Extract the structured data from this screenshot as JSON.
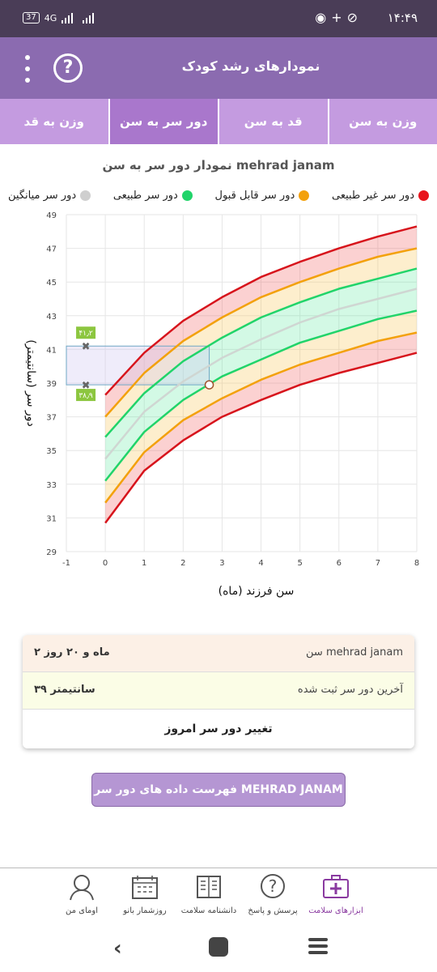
{
  "status_bar": {
    "time": "۱۴:۴۹",
    "battery": "37",
    "network": "4G",
    "icons": [
      "whatsapp-icon",
      "plus-icon",
      "mute-icon"
    ]
  },
  "app_bar": {
    "title": "نمودارهای رشد کودک",
    "help_label": "?"
  },
  "tabs": [
    {
      "label": "وزن به سن",
      "active": false
    },
    {
      "label": "قد به سن",
      "active": false
    },
    {
      "label": "دور سر به سن",
      "active": true
    },
    {
      "label": "وزن به قد",
      "active": false
    }
  ],
  "chart_header": {
    "title": "نمودار دور سر به سن mehrad janam"
  },
  "legend": [
    {
      "label": "دور سر غیر طبیعی",
      "color": "#e8141c"
    },
    {
      "label": "دور سر قابل قبول",
      "color": "#f3a10c"
    },
    {
      "label": "دور سر طبیعی",
      "color": "#21d46a"
    },
    {
      "label": "دور سر میانگین",
      "color": "#cfcfcf"
    }
  ],
  "chart_data": {
    "type": "line",
    "xlabel": "سن فرزند (ماه)",
    "ylabel": "دور سر (سانتیمتر)",
    "xlim": [
      -1,
      8
    ],
    "ylim": [
      29,
      49
    ],
    "x_ticks": [
      "-1",
      "0",
      "1",
      "2",
      "3",
      "4",
      "5",
      "6",
      "7",
      "8"
    ],
    "y_ticks": [
      "29",
      "31",
      "33",
      "35",
      "37",
      "39",
      "41",
      "43",
      "45",
      "47",
      "49"
    ],
    "x": [
      0,
      1,
      2,
      3,
      4,
      5,
      6,
      7,
      8
    ],
    "series": [
      {
        "values": [
          30.7,
          33.8,
          35.6,
          37.0,
          38.0,
          38.9,
          39.6,
          40.2,
          40.8
        ],
        "color": "#d7141c"
      },
      {
        "values": [
          31.9,
          34.9,
          36.8,
          38.1,
          39.2,
          40.1,
          40.8,
          41.5,
          42.0
        ],
        "color": "#f3a10c"
      },
      {
        "values": [
          33.2,
          36.1,
          38.0,
          39.4,
          40.4,
          41.4,
          42.1,
          42.8,
          43.3
        ],
        "color": "#21d46a"
      },
      {
        "values": [
          34.5,
          37.3,
          39.1,
          40.5,
          41.6,
          42.6,
          43.4,
          44.0,
          44.6
        ],
        "color": "#cfd6d2"
      },
      {
        "values": [
          35.8,
          38.4,
          40.3,
          41.7,
          42.9,
          43.8,
          44.6,
          45.2,
          45.8
        ],
        "color": "#21d46a"
      },
      {
        "values": [
          37.0,
          39.6,
          41.5,
          42.9,
          44.1,
          45.0,
          45.8,
          46.5,
          47.0
        ],
        "color": "#f3a10c"
      },
      {
        "values": [
          38.3,
          40.8,
          42.7,
          44.1,
          45.3,
          46.2,
          47.0,
          47.7,
          48.3
        ],
        "color": "#d7141c"
      }
    ],
    "measurement": {
      "x": 2.67,
      "y": 38.9
    },
    "marker_labels": [
      "۴۱٫۲",
      "۳۸٫۹"
    ],
    "marker_values": [
      41.2,
      38.9
    ],
    "grid": true
  },
  "info_card": {
    "age_label": "سن mehrad janam",
    "age_value": "۲ ماه و ۲۰ روز",
    "last_label": "آخرین دور سر ثبت شده",
    "last_value": "۳۹ سانتیمتر",
    "change_label": "تغییر دور سر امروز"
  },
  "list_button": "فهرست داده های دور سر MEHRAD JANAM",
  "bottom_nav": [
    {
      "label": "ابزارهای سلامت",
      "icon": "medical-kit-icon",
      "active": true
    },
    {
      "label": "پرسش و پاسخ",
      "icon": "question-bubble-icon",
      "active": false
    },
    {
      "label": "دانشنامه سلامت",
      "icon": "book-icon",
      "active": false
    },
    {
      "label": "روزشمار بانو",
      "icon": "calendar-icon",
      "active": false
    },
    {
      "label": "اومای من",
      "icon": "woman-avatar-icon",
      "active": false
    }
  ]
}
